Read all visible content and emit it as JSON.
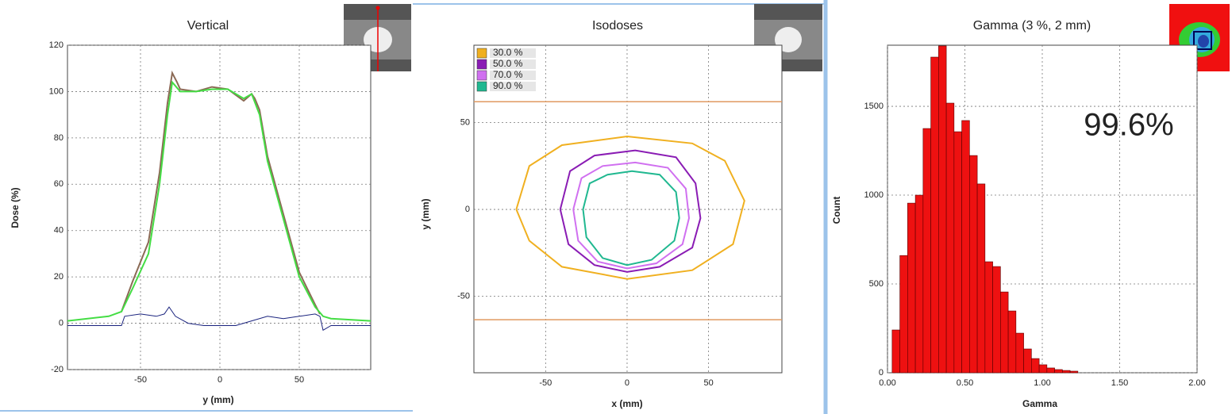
{
  "chart_data": [
    {
      "type": "line",
      "title": "Vertical",
      "x_label": "y (mm)",
      "y_label": "Dose (%)",
      "xlim": [
        -96,
        95
      ],
      "ylim": [
        -20,
        120
      ],
      "xticks": [
        -50,
        0,
        50
      ],
      "yticks": [
        -20,
        0,
        20,
        40,
        60,
        80,
        100,
        120
      ],
      "grid": true,
      "series": [
        {
          "color": "#8b6a55",
          "x": [
            -62,
            -55,
            -45,
            -38,
            -33,
            -30,
            -27,
            -25,
            -15,
            -5,
            5,
            15,
            20,
            22,
            25,
            30,
            40,
            50,
            60,
            63
          ],
          "values": [
            5,
            18,
            35,
            65,
            95,
            108,
            104,
            101,
            100,
            102,
            101,
            96,
            99,
            97,
            92,
            72,
            47,
            22,
            8,
            4
          ]
        },
        {
          "color": "#44dd44",
          "x": [
            -96,
            -70,
            -62,
            -55,
            -45,
            -38,
            -33,
            -30,
            -25,
            -15,
            -5,
            5,
            15,
            20,
            25,
            30,
            40,
            50,
            60,
            65,
            70,
            95
          ],
          "values": [
            1,
            3,
            5,
            15,
            30,
            60,
            90,
            104,
            100,
            100,
            101,
            101,
            97,
            99,
            90,
            70,
            45,
            20,
            7,
            3,
            2,
            1
          ]
        },
        {
          "color": "#1a237e",
          "x": [
            -96,
            -62,
            -60,
            -50,
            -40,
            -35,
            -32,
            -28,
            -20,
            -10,
            0,
            10,
            20,
            30,
            40,
            50,
            60,
            63,
            65,
            70,
            95
          ],
          "values": [
            -1,
            -1,
            3,
            4,
            3,
            4,
            7,
            3,
            0,
            -1,
            -1,
            -1,
            1,
            3,
            2,
            3,
            4,
            3,
            -3,
            -1,
            -1
          ]
        }
      ]
    },
    {
      "type": "contour",
      "title": "Isodoses",
      "x_label": "x (mm)",
      "y_label": "y (mm)",
      "xlim": [
        -94,
        95
      ],
      "ylim": [
        -94,
        94.5
      ],
      "xticks": [
        -50,
        0,
        50
      ],
      "yticks": [
        -50,
        0,
        50
      ],
      "grid": true,
      "hlines": [
        62,
        -63.5
      ],
      "hline_color": "#e09a60",
      "legend": "top-left",
      "series": [
        {
          "name": "30.0 %",
          "color": "#f0b020",
          "x": [
            -68,
            -60,
            -40,
            0,
            40,
            60,
            72,
            65,
            40,
            0,
            -40,
            -60,
            -68
          ],
          "values": [
            0,
            25,
            37,
            42,
            38,
            28,
            5,
            -20,
            -35,
            -40,
            -33,
            -18,
            0
          ]
        },
        {
          "name": "50.0 %",
          "color": "#8a1cb4",
          "x": [
            -41,
            -35,
            -20,
            5,
            30,
            42,
            45,
            40,
            20,
            0,
            -20,
            -36,
            -41
          ],
          "values": [
            0,
            22,
            31,
            34,
            30,
            15,
            -5,
            -22,
            -33,
            -36,
            -32,
            -20,
            0
          ]
        },
        {
          "name": "70.0 %",
          "color": "#d070f0",
          "x": [
            -33,
            -28,
            -15,
            5,
            25,
            36,
            38,
            34,
            18,
            0,
            -18,
            -30,
            -33
          ],
          "values": [
            0,
            18,
            25,
            27,
            24,
            12,
            -5,
            -20,
            -31,
            -34,
            -30,
            -18,
            0
          ]
        },
        {
          "name": "90.0 %",
          "color": "#20b890",
          "x": [
            -27,
            -23,
            -12,
            3,
            20,
            30,
            32,
            29,
            15,
            0,
            -15,
            -25,
            -27
          ],
          "values": [
            0,
            15,
            20,
            22,
            20,
            10,
            -5,
            -18,
            -29,
            -32,
            -28,
            -16,
            0
          ]
        }
      ]
    },
    {
      "type": "histogram",
      "title": "Gamma (3 %, 2 mm)",
      "x_label": "Gamma",
      "y_label": "Count",
      "annotation": "99.6%",
      "xlim": [
        0,
        2
      ],
      "ylim": [
        0,
        1844
      ],
      "xticks": [
        {
          "value": 0,
          "label": "0.00"
        },
        {
          "value": 0.5,
          "label": "0.50"
        },
        {
          "value": 1,
          "label": "1.00"
        },
        {
          "value": 1.5,
          "label": "1.50"
        },
        {
          "value": 2,
          "label": "2.00"
        }
      ],
      "yticks": [
        0,
        500,
        1000,
        1500
      ],
      "grid": true,
      "color": "#ee1111",
      "bins": [
        0.03,
        0.08,
        0.13,
        0.18,
        0.23,
        0.28,
        0.33,
        0.38,
        0.43,
        0.48,
        0.53,
        0.58,
        0.63,
        0.68,
        0.73,
        0.78,
        0.83,
        0.88,
        0.93,
        0.98,
        1.03,
        1.08,
        1.13,
        1.18,
        1.23
      ],
      "values": [
        241,
        660,
        955,
        1000,
        1375,
        1777,
        1840,
        1518,
        1357,
        1420,
        1223,
        1063,
        625,
        598,
        455,
        348,
        223,
        134,
        80,
        45,
        27,
        18,
        13,
        9
      ]
    }
  ]
}
